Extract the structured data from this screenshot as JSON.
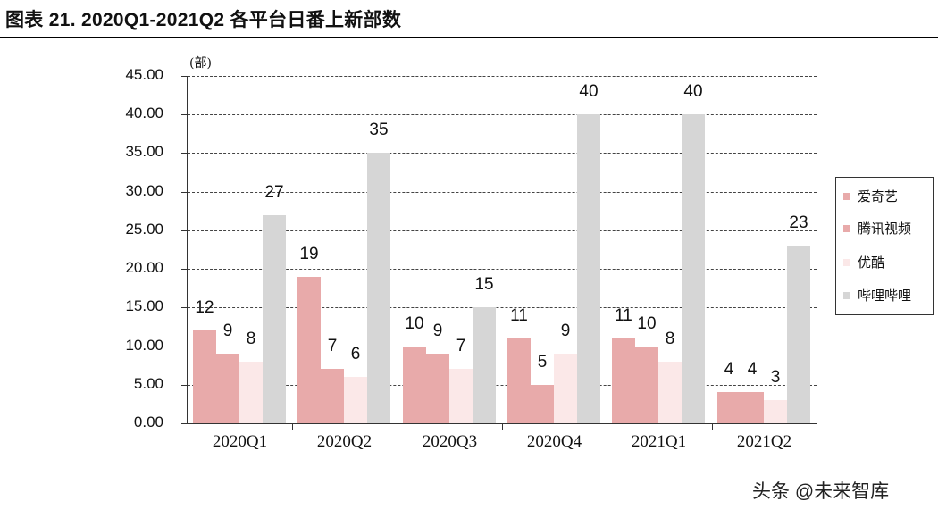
{
  "title": "图表 21. 2020Q1-2021Q2 各平台日番上新部数",
  "watermark": "头条 @未来智库",
  "chart_data": {
    "type": "bar",
    "title": "图表 21. 2020Q1-2021Q2 各平台日番上新部数",
    "ylabel": "(部)",
    "xlabel": "",
    "ylim": [
      0,
      45
    ],
    "yticks": [
      "0.00",
      "5.00",
      "10.00",
      "15.00",
      "20.00",
      "25.00",
      "30.00",
      "35.00",
      "40.00",
      "45.00"
    ],
    "grid": true,
    "legend_position": "right",
    "categories": [
      "2020Q1",
      "2020Q2",
      "2020Q3",
      "2020Q4",
      "2021Q1",
      "2021Q2"
    ],
    "series": [
      {
        "name": "爱奇艺",
        "color": "#e8aaaa",
        "values": [
          12,
          19,
          10,
          11,
          11,
          4
        ]
      },
      {
        "name": "腾讯视频",
        "color": "#e8aaaa",
        "values": [
          9,
          7,
          9,
          5,
          10,
          4
        ]
      },
      {
        "name": "优酷",
        "color": "#fbe8e8",
        "values": [
          8,
          6,
          7,
          9,
          8,
          3
        ]
      },
      {
        "name": "哔哩哔哩",
        "color": "#d6d6d6",
        "values": [
          27,
          35,
          15,
          40,
          40,
          23
        ]
      }
    ]
  }
}
